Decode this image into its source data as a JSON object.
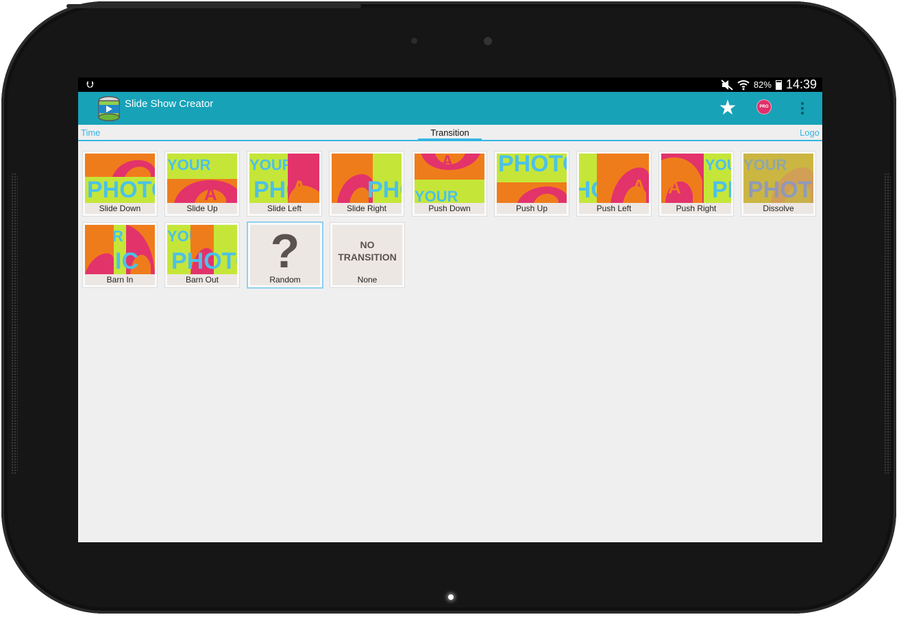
{
  "status": {
    "usb_icon": "usb-icon",
    "battery": "82%",
    "time": "14:39"
  },
  "app": {
    "title": "Slide Show Creator"
  },
  "tabs": {
    "left": "Time",
    "center": "Transition",
    "right": "Logo"
  },
  "transitions": [
    {
      "label": "Slide Down"
    },
    {
      "label": "Slide Up"
    },
    {
      "label": "Slide Left"
    },
    {
      "label": "Slide Right"
    },
    {
      "label": "Push Down"
    },
    {
      "label": "Push Up"
    },
    {
      "label": "Push Left"
    },
    {
      "label": "Push Right"
    },
    {
      "label": "Dissolve"
    },
    {
      "label": "Barn In"
    },
    {
      "label": "Barn Out"
    },
    {
      "label": "Random",
      "glyph": "?"
    },
    {
      "label": "None",
      "line1": "NO",
      "line2": "TRANSITION"
    }
  ],
  "thumb_texts": {
    "your": "YOUR",
    "photo": "PHOTO",
    "a": "A"
  },
  "pro_badge": "PRO",
  "colors": {
    "actionbar": "#17a2b8",
    "accent": "#34b5e5",
    "orange": "#ef7c1b",
    "green": "#c5e639",
    "pink": "#e2336b",
    "cyan": "#4cc1e8"
  }
}
